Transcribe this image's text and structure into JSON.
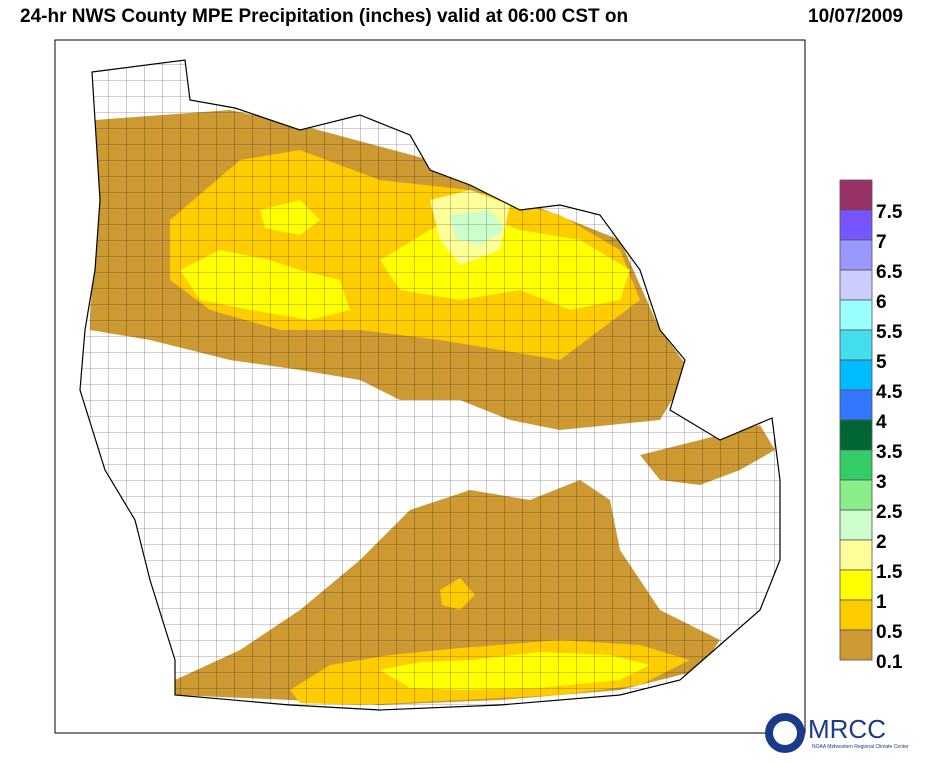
{
  "title": "24-hr NWS County MPE Precipitation (inches) valid at 06:00 CST on",
  "date": "10/07/2009",
  "legend": {
    "items": [
      {
        "label": "7.5",
        "color": "#993366"
      },
      {
        "label": "7",
        "color": "#7755ff"
      },
      {
        "label": "6.5",
        "color": "#9999ff"
      },
      {
        "label": "6",
        "color": "#ccccff"
      },
      {
        "label": "5.5",
        "color": "#99ffff"
      },
      {
        "label": "5",
        "color": "#44ddee"
      },
      {
        "label": "4.5",
        "color": "#00bbff"
      },
      {
        "label": "4",
        "color": "#3377ff"
      },
      {
        "label": "3.5",
        "color": "#006633"
      },
      {
        "label": "3",
        "color": "#33cc66"
      },
      {
        "label": "2.5",
        "color": "#88ee88"
      },
      {
        "label": "2",
        "color": "#ccffcc"
      },
      {
        "label": "1.5",
        "color": "#ffff99"
      },
      {
        "label": "1",
        "color": "#ffff00"
      },
      {
        "label": "0.5",
        "color": "#ffcc00"
      },
      {
        "label": "0.1",
        "color": "#cc9933"
      }
    ]
  },
  "logo": {
    "text": "MRCC",
    "subtitle": "NOAA Midwestern Regional Climate Center"
  }
}
